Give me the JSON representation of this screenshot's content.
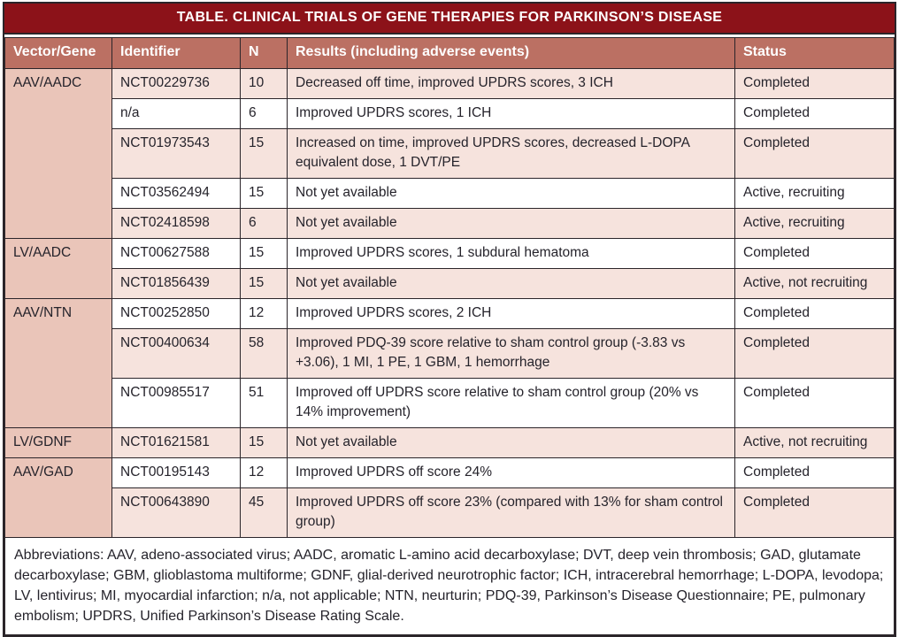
{
  "title": "TABLE. CLINICAL TRIALS OF GENE THERAPIES FOR PARKINSON’S DISEASE",
  "columns": [
    "Vector/Gene",
    "Identifier",
    "N",
    "Results (including adverse events)",
    "Status"
  ],
  "groups": [
    {
      "vector_gene": "AAV/AADC",
      "trials": [
        {
          "identifier": "NCT00229736",
          "n": "10",
          "results": "Decreased off time, improved UPDRS scores, 3 ICH",
          "status": "Completed"
        },
        {
          "identifier": "n/a",
          "n": "6",
          "results": "Improved UPDRS scores, 1 ICH",
          "status": "Completed"
        },
        {
          "identifier": "NCT01973543",
          "n": "15",
          "results": "Increased on time, improved UPDRS scores, decreased L-DOPA equivalent dose, 1 DVT/PE",
          "status": "Completed"
        },
        {
          "identifier": "NCT03562494",
          "n": "15",
          "results": "Not yet available",
          "status": "Active, recruiting"
        },
        {
          "identifier": "NCT02418598",
          "n": "6",
          "results": "Not yet available",
          "status": "Active, recruiting"
        }
      ]
    },
    {
      "vector_gene": "LV/AADC",
      "trials": [
        {
          "identifier": "NCT00627588",
          "n": "15",
          "results": "Improved UPDRS scores, 1 subdural hematoma",
          "status": "Completed"
        },
        {
          "identifier": "NCT01856439",
          "n": "15",
          "results": "Not yet available",
          "status": "Active, not recruiting"
        }
      ]
    },
    {
      "vector_gene": "AAV/NTN",
      "trials": [
        {
          "identifier": "NCT00252850",
          "n": "12",
          "results": "Improved UPDRS scores, 2 ICH",
          "status": "Completed"
        },
        {
          "identifier": "NCT00400634",
          "n": "58",
          "results": "Improved PDQ-39 score relative to sham control group (-3.83 vs +3.06), 1 MI, 1 PE, 1 GBM, 1 hemorrhage",
          "status": "Completed"
        },
        {
          "identifier": "NCT00985517",
          "n": "51",
          "results": "Improved off UPDRS score relative to sham control group (20% vs 14% improvement)",
          "status": "Completed"
        }
      ]
    },
    {
      "vector_gene": "LV/GDNF",
      "trials": [
        {
          "identifier": "NCT01621581",
          "n": "15",
          "results": "Not yet available",
          "status": "Active, not recruiting"
        }
      ]
    },
    {
      "vector_gene": "AAV/GAD",
      "trials": [
        {
          "identifier": "NCT00195143",
          "n": "12",
          "results": "Improved UPDRS off score 24%",
          "status": "Completed"
        },
        {
          "identifier": "NCT00643890",
          "n": "45",
          "results": "Improved UPDRS off score 23% (compared with 13% for sham control group)",
          "status": "Completed"
        }
      ]
    }
  ],
  "footnote": "Abbreviations: AAV, adeno-associated virus; AADC, aromatic L-amino acid decarboxylase; DVT, deep vein thrombosis; GAD, glutamate decarboxylase; GBM, glioblastoma multiforme; GDNF, glial-derived neurotrophic factor; ICH, intracerebral hemorrhage; L-DOPA, levodopa; LV, lentivirus; MI, myocardial infarction; n/a, not applicable; NTN, neurturin; PDQ-39, Parkinson’s Disease Questionnaire; PE, pulmonary embolism; UPDRS, Unified Parkinson’s Disease Rating Scale.",
  "colors": {
    "title_bar": "#8C1219",
    "header_row": "#BB7063",
    "vector_gene_column": "#EAC5B9",
    "stripe_pink": "#F6E3DD",
    "stripe_white": "#FFFFFF",
    "border": "#2B252A",
    "body_text": "#25232B",
    "header_text": "#FFFFFF"
  }
}
